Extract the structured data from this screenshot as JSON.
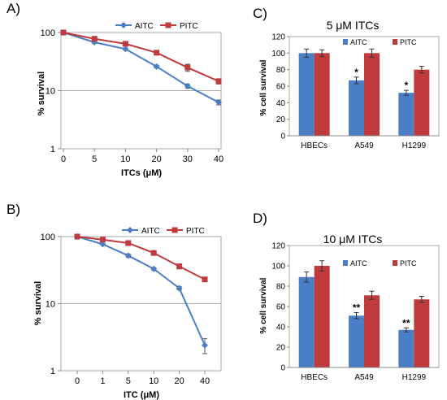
{
  "colors": {
    "blue": "#4a7ec7",
    "red": "#c0393b"
  },
  "chart_data": [
    {
      "panel_label": "A)",
      "type": "line",
      "y_scale": "log",
      "ylim": [
        1,
        100
      ],
      "yticks": [
        "1",
        "10",
        "100"
      ],
      "x": [
        "0",
        "5",
        "10",
        "20",
        "30",
        "40"
      ],
      "xlabel": "ITCs (μM)",
      "ylabel": "% survival",
      "legend_position": "top",
      "gridline_at": 10,
      "series": [
        {
          "name": "AITC",
          "values": [
            100,
            68,
            52,
            26,
            12,
            6.3
          ],
          "errors": [
            0,
            3,
            2,
            1.5,
            1,
            0.6
          ]
        },
        {
          "name": "PITC",
          "values": [
            100,
            78,
            64,
            45,
            25,
            14.5
          ],
          "errors": [
            0,
            3,
            3,
            2,
            3.5,
            1.5
          ]
        }
      ]
    },
    {
      "panel_label": "B)",
      "type": "line",
      "y_scale": "log",
      "ylim": [
        1,
        100
      ],
      "yticks": [
        "1",
        "10",
        "100"
      ],
      "x": [
        "0",
        "1",
        "5",
        "10",
        "20",
        "40"
      ],
      "xlabel": "ITC (μM)",
      "ylabel": "% survival",
      "legend_position": "top-right",
      "gridline_at": 10,
      "series": [
        {
          "name": "AITC",
          "values": [
            100,
            77,
            52,
            33,
            17,
            2.4
          ],
          "errors": [
            0,
            2,
            3,
            1.5,
            1,
            0.6
          ]
        },
        {
          "name": "PITC",
          "values": [
            100,
            90,
            80,
            57,
            36,
            23
          ],
          "errors": [
            0,
            3,
            3,
            2,
            3,
            1
          ]
        }
      ]
    },
    {
      "panel_label": "C)",
      "type": "bar",
      "title": "5 μM ITCs",
      "categories": [
        "HBECs",
        "A549",
        "H1299"
      ],
      "ylabel": "% cell survival",
      "ylim": [
        0,
        120
      ],
      "yticks": [
        "0",
        "20",
        "40",
        "60",
        "80",
        "100",
        "120"
      ],
      "legend_position": "top",
      "series": [
        {
          "name": "AITC",
          "values": [
            100,
            67,
            52
          ],
          "errors": [
            5,
            4,
            3
          ],
          "markers": [
            "",
            "*",
            "*"
          ]
        },
        {
          "name": "PITC",
          "values": [
            100,
            100,
            80
          ],
          "errors": [
            4,
            5,
            4
          ]
        }
      ]
    },
    {
      "panel_label": "D)",
      "type": "bar",
      "title": "10 μM ITCs",
      "categories": [
        "HBECs",
        "A549",
        "H1299"
      ],
      "ylabel": "% cell survival",
      "ylim": [
        0,
        120
      ],
      "yticks": [
        "0",
        "20",
        "40",
        "60",
        "80",
        "100",
        "120"
      ],
      "legend_position": "top",
      "series": [
        {
          "name": "AITC",
          "values": [
            89,
            51,
            37
          ],
          "errors": [
            5,
            3,
            2
          ],
          "markers": [
            "",
            "**",
            "**"
          ]
        },
        {
          "name": "PITC",
          "values": [
            100,
            71,
            67
          ],
          "errors": [
            5,
            4,
            3
          ]
        }
      ]
    }
  ]
}
